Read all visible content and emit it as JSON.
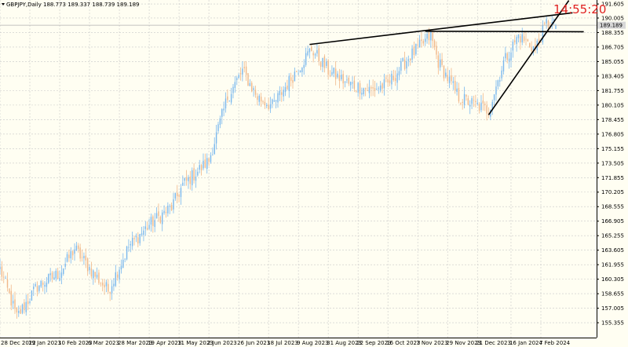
{
  "header": {
    "symbol_info": "GBPJPY,Daily  188.773 189.337 188.739 189.189"
  },
  "clock": "14:55:20",
  "current_price": "189.189",
  "colors": {
    "background": "#fffef2",
    "grid": "#c8c8c8",
    "bull": "#7ab8ee",
    "bear": "#f0b88a",
    "trendline": "#000000",
    "clock": "#e02020",
    "axis": "#000000"
  },
  "chart_data": {
    "type": "candlestick",
    "title": "GBPJPY,Daily",
    "ohlc_header": {
      "open": 188.773,
      "high": 189.337,
      "low": 188.739,
      "close": 189.189
    },
    "ylim": [
      154.2,
      191.7
    ],
    "grid": true,
    "price_ticks": [
      "191.605",
      "190.005",
      "188.355",
      "186.705",
      "185.055",
      "183.405",
      "181.755",
      "180.105",
      "178.455",
      "176.805",
      "175.155",
      "173.505",
      "171.855",
      "170.205",
      "168.555",
      "166.905",
      "165.255",
      "163.605",
      "161.955",
      "160.305",
      "158.655",
      "157.005",
      "155.355"
    ],
    "date_ticks": [
      "28 Dec 2022",
      "19 Jan 2023",
      "10 Feb 2023",
      "6 Mar 2023",
      "28 Mar 2023",
      "19 Apr 2023",
      "11 May 2023",
      "2 Jun 2023",
      "26 Jun 2023",
      "18 Jul 2023",
      "9 Aug 2023",
      "31 Aug 2023",
      "22 Sep 2023",
      "16 Oct 2023",
      "7 Nov 2023",
      "29 Nov 2023",
      "21 Dec 2023",
      "16 Jan 2024",
      "7 Feb 2024"
    ],
    "anchors": [
      {
        "date": "28 Dec 2022",
        "price": 161.5
      },
      {
        "date": "10 Jan 2023",
        "price": 156.0
      },
      {
        "date": "25 Jan 2023",
        "price": 159.5
      },
      {
        "date": "10 Feb 2023",
        "price": 161.0
      },
      {
        "date": "22 Feb 2023",
        "price": 163.8
      },
      {
        "date": "8 Mar 2023",
        "price": 161.0
      },
      {
        "date": "20 Mar 2023",
        "price": 159.0
      },
      {
        "date": "4 Apr 2023",
        "price": 164.0
      },
      {
        "date": "19 Apr 2023",
        "price": 166.5
      },
      {
        "date": "5 May 2023",
        "price": 168.5
      },
      {
        "date": "15 May 2023",
        "price": 171.0
      },
      {
        "date": "2 Jun 2023",
        "price": 173.8
      },
      {
        "date": "16 Jun 2023",
        "price": 181.0
      },
      {
        "date": "28 Jun 2023",
        "price": 184.0
      },
      {
        "date": "10 Jul 2023",
        "price": 181.0
      },
      {
        "date": "20 Jul 2023",
        "price": 180.0
      },
      {
        "date": "1 Aug 2023",
        "price": 182.5
      },
      {
        "date": "18 Aug 2023",
        "price": 186.5
      },
      {
        "date": "31 Aug 2023",
        "price": 184.0
      },
      {
        "date": "15 Sep 2023",
        "price": 182.5
      },
      {
        "date": "3 Oct 2023",
        "price": 181.8
      },
      {
        "date": "16 Oct 2023",
        "price": 182.5
      },
      {
        "date": "31 Oct 2023",
        "price": 185.5
      },
      {
        "date": "16 Nov 2023",
        "price": 188.0
      },
      {
        "date": "22 Nov 2023",
        "price": 185.0
      },
      {
        "date": "7 Dec 2023",
        "price": 181.0
      },
      {
        "date": "14 Dec 2023",
        "price": 180.5
      },
      {
        "date": "29 Dec 2023",
        "price": 179.5
      },
      {
        "date": "10 Jan 2024",
        "price": 185.0
      },
      {
        "date": "22 Jan 2024",
        "price": 188.0
      },
      {
        "date": "2 Feb 2024",
        "price": 186.5
      },
      {
        "date": "12 Feb 2024",
        "price": 189.4
      },
      {
        "date": "19 Feb 2024",
        "price": 189.2
      }
    ],
    "trendlines": [
      {
        "from": {
          "date": "17 Aug 2023",
          "price": 187.0
        },
        "to": {
          "date": "1 Mar 2024",
          "price": 190.6
        }
      },
      {
        "from": {
          "date": "13 Nov 2023",
          "price": 188.5
        },
        "to": {
          "date": "11 Mar 2024",
          "price": 188.45
        }
      },
      {
        "from": {
          "date": "29 Dec 2023",
          "price": 179.0
        },
        "to": {
          "date": "28 Feb 2024",
          "price": 192.0
        }
      }
    ]
  }
}
